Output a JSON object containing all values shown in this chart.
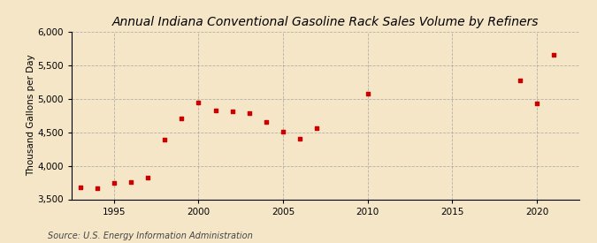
{
  "title": "Annual Indiana Conventional Gasoline Rack Sales Volume by Refiners",
  "ylabel": "Thousand Gallons per Day",
  "source": "Source: U.S. Energy Information Administration",
  "background_color": "#f5e6c8",
  "plot_background_color": "#f5e6c8",
  "marker_color": "#cc0000",
  "grid_color": "#999999",
  "xy_data": {
    "1993": 3680,
    "1994": 3670,
    "1995": 3750,
    "1996": 3760,
    "1997": 3820,
    "1998": 4390,
    "1999": 4700,
    "2000": 4940,
    "2001": 4820,
    "2002": 4810,
    "2003": 4780,
    "2004": 4650,
    "2005": 4510,
    "2006": 4400,
    "2007": 4560,
    "2010": 5080,
    "2019": 5270,
    "2020": 4930,
    "2021": 5650
  },
  "ylim": [
    3500,
    6000
  ],
  "xlim": [
    1992.5,
    2022.5
  ],
  "yticks": [
    3500,
    4000,
    4500,
    5000,
    5500,
    6000
  ],
  "ytick_labels": [
    "3,500",
    "4,000",
    "4,500",
    "5,000",
    "5,500",
    "6,000"
  ],
  "xticks": [
    1995,
    2000,
    2005,
    2010,
    2015,
    2020
  ],
  "title_fontsize": 10,
  "label_fontsize": 7.5,
  "tick_fontsize": 7.5,
  "source_fontsize": 7
}
